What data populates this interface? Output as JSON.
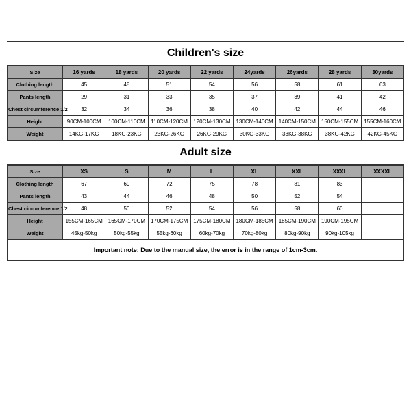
{
  "children": {
    "title": "Children's size",
    "header": [
      "16 yards",
      "18 yards",
      "20 yards",
      "22 yards",
      "24yards",
      "26yards",
      "28 yards",
      "30yards"
    ],
    "rows": [
      {
        "label": "Size"
      },
      {
        "label": "Clothing length",
        "cells": [
          "45",
          "48",
          "51",
          "54",
          "56",
          "58",
          "61",
          "63"
        ]
      },
      {
        "label": "Pants length",
        "cells": [
          "29",
          "31",
          "33",
          "35",
          "37",
          "39",
          "41",
          "42"
        ]
      },
      {
        "label": "Chest circumference 1/2",
        "cells": [
          "32",
          "34",
          "36",
          "38",
          "40",
          "42",
          "44",
          "46"
        ]
      },
      {
        "label": "Height",
        "cells": [
          "90CM-100CM",
          "100CM-110CM",
          "110CM-120CM",
          "120CM-130CM",
          "130CM-140CM",
          "140CM-150CM",
          "150CM-155CM",
          "155CM-160CM"
        ]
      },
      {
        "label": "Weight",
        "cells": [
          "14KG-17KG",
          "18KG-23KG",
          "23KG-26KG",
          "26KG-29KG",
          "30KG-33KG",
          "33KG-38KG",
          "38KG-42KG",
          "42KG-45KG"
        ]
      }
    ]
  },
  "adult": {
    "title": "Adult size",
    "header": [
      "XS",
      "S",
      "M",
      "L",
      "XL",
      "XXL",
      "XXXL",
      "XXXXL"
    ],
    "rows": [
      {
        "label": "Size"
      },
      {
        "label": "Clothing length",
        "cells": [
          "67",
          "69",
          "72",
          "75",
          "78",
          "81",
          "83",
          ""
        ]
      },
      {
        "label": "Pants length",
        "cells": [
          "43",
          "44",
          "46",
          "48",
          "50",
          "52",
          "54",
          ""
        ]
      },
      {
        "label": "Chest circumference 1/2",
        "cells": [
          "48",
          "50",
          "52",
          "54",
          "56",
          "58",
          "60",
          ""
        ]
      },
      {
        "label": "Height",
        "cells": [
          "155CM-165CM",
          "165CM-170CM",
          "170CM-175CM",
          "175CM-180CM",
          "180CM-185CM",
          "185CM-190CM",
          "190CM-195CM",
          ""
        ]
      },
      {
        "label": "Weight",
        "cells": [
          "45kg-50kg",
          "50kg-55kg",
          "55kg-60kg",
          "60kg-70kg",
          "70kg-80kg",
          "80kg-90kg",
          "90kg-105kg",
          ""
        ]
      }
    ]
  },
  "note": "Important note: Due to the manual size, the error is in the range of 1cm-3cm."
}
